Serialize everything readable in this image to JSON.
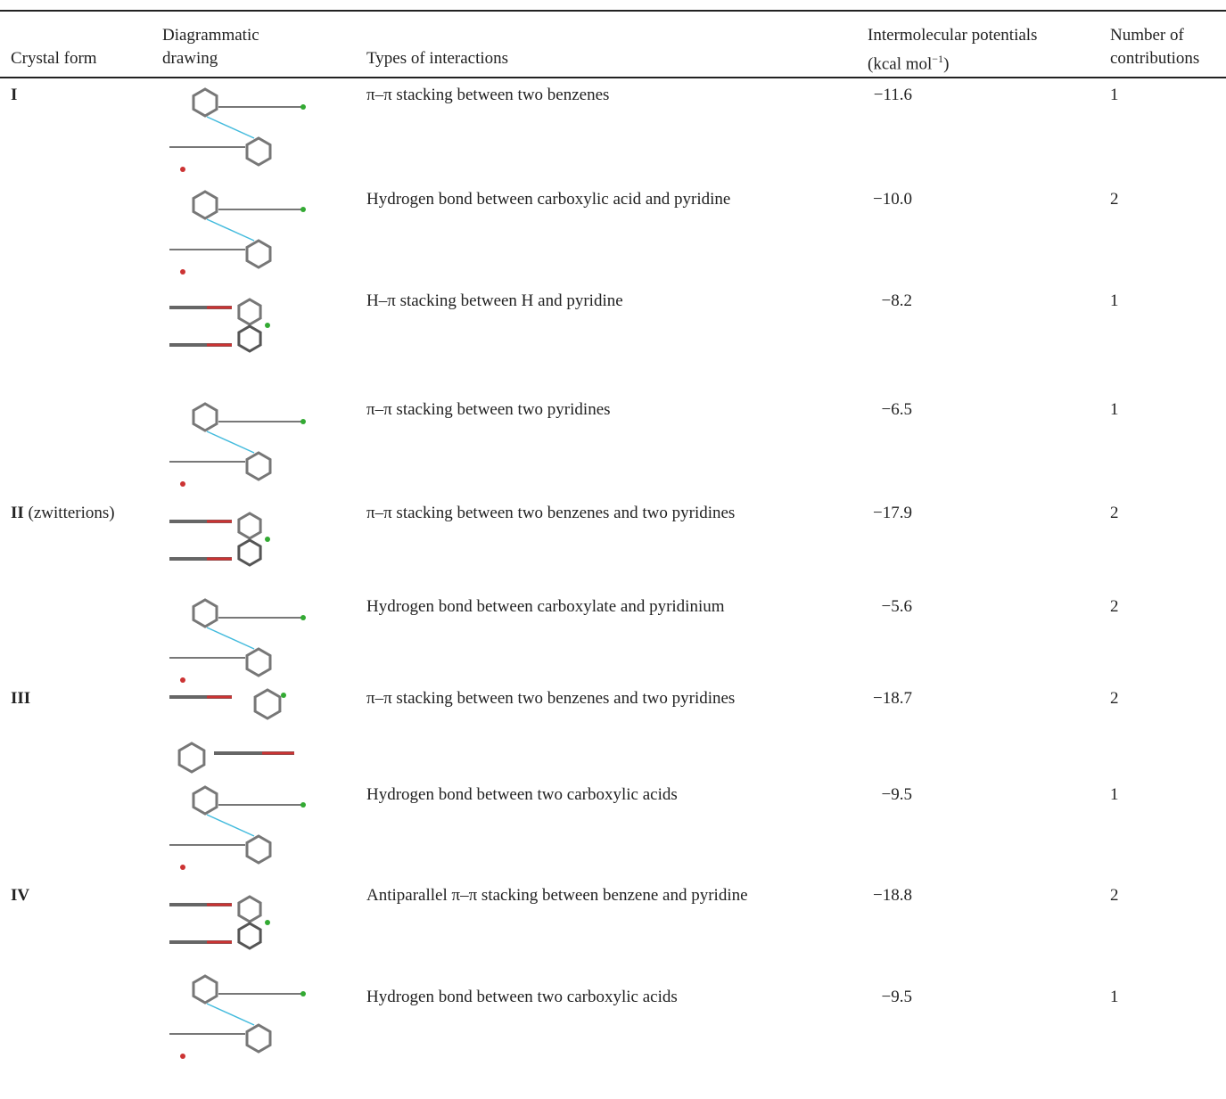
{
  "table": {
    "header": {
      "crystal_form": "Crystal form",
      "drawing": [
        "Diagrammatic",
        "drawing"
      ],
      "interactions": "Types of interactions",
      "potentials": {
        "line1": "Intermolecular potentials",
        "line2_pre": "(kcal mol",
        "line2_sup": "−1",
        "line2_post": ")"
      },
      "contributions": [
        "Number of",
        "contributions"
      ]
    },
    "rows": [
      {
        "form": "I",
        "interaction": "π–π stacking between two benzenes",
        "potential": "−11.6",
        "contributions": 1
      },
      {
        "interaction": "Hydrogen bond between carboxylic acid and pyridine",
        "potential": "−10.0",
        "contributions": 2
      },
      {
        "interaction": "H–π stacking between H and pyridine",
        "potential": "−8.2",
        "contributions": 1
      },
      {
        "interaction": "π–π stacking between two pyridines",
        "potential": "−6.5",
        "contributions": 1
      },
      {
        "form": "II",
        "form_note": " (zwitterions)",
        "interaction": "π–π stacking between two benzenes and two pyridines",
        "potential": "−17.9",
        "contributions": 2
      },
      {
        "interaction": "Hydrogen bond between carboxylate and pyridinium",
        "potential": "−5.6",
        "contributions": 2
      },
      {
        "form": "III",
        "interaction": "π–π stacking between two benzenes and two pyridines",
        "potential": "−18.7",
        "contributions": 2
      },
      {
        "interaction": "Hydrogen bond between two carboxylic acids",
        "potential": "−9.5",
        "contributions": 1
      },
      {
        "form": "IV",
        "interaction": "Antiparallel π–π stacking between benzene and pyridine",
        "potential": "−18.8",
        "contributions": 2
      },
      {
        "interaction": "Hydrogen bond between two carboxylic acids",
        "potential": "−9.5",
        "contributions": 1
      }
    ]
  }
}
